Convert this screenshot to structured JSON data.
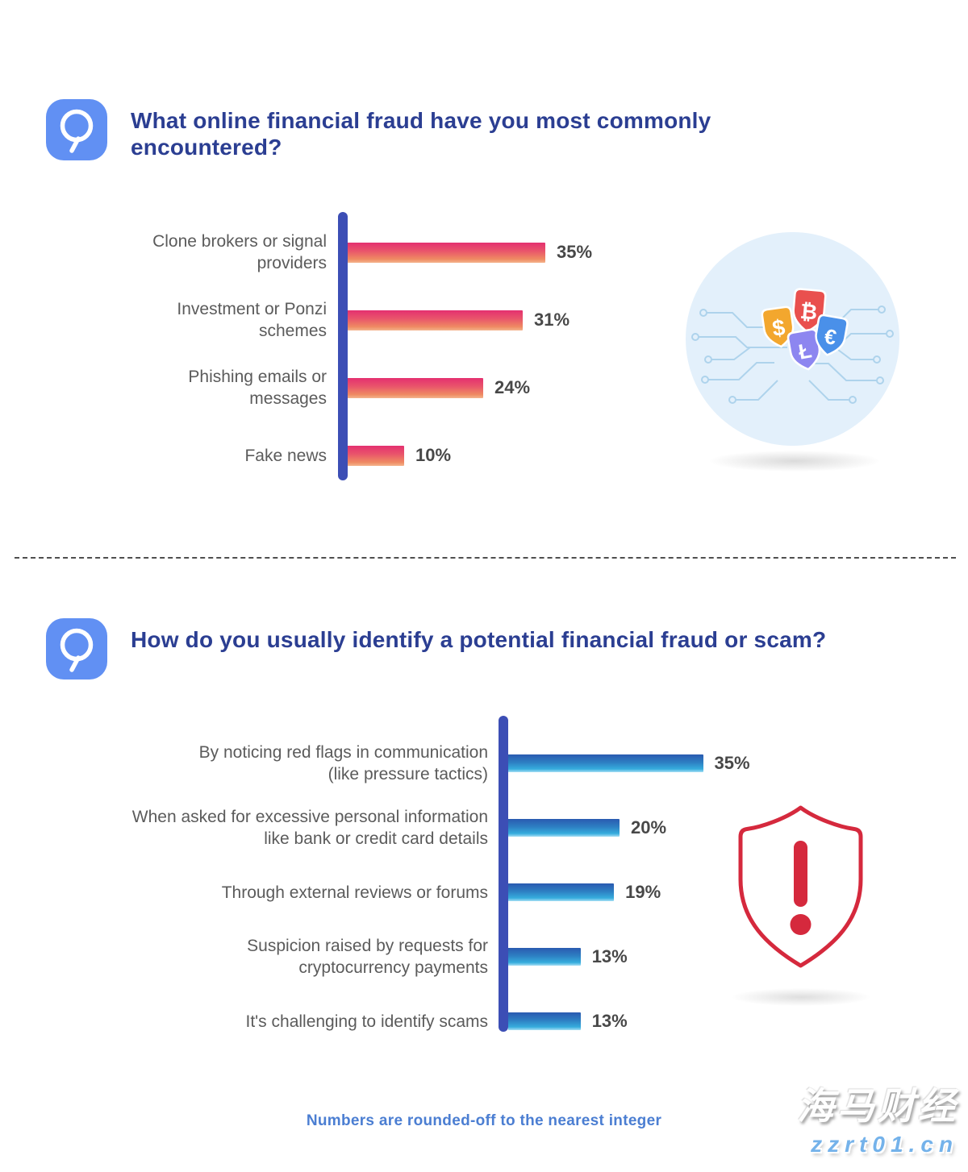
{
  "questions": [
    {
      "title": "What online financial fraud have you most commonly encountered?",
      "icon": "magnifier-q-icon"
    },
    {
      "title": "How do you usually identify a potential financial fraud or scam?",
      "icon": "magnifier-q-icon"
    }
  ],
  "chart_data": [
    {
      "type": "bar",
      "orientation": "horizontal",
      "title": "What online financial fraud have you most commonly encountered?",
      "categories": [
        "Clone brokers or signal\nproviders",
        "Investment or Ponzi\nschemes",
        "Phishing emails or\nmessages",
        "Fake news"
      ],
      "values": [
        35,
        31,
        24,
        10
      ],
      "value_labels": [
        "35%",
        "31%",
        "24%",
        "10%"
      ],
      "value_format": "percent",
      "xlim": [
        0,
        40
      ],
      "grid": false,
      "legend": "none",
      "bar_gradient": [
        "#e43070",
        "#f0915f"
      ],
      "axis_color": "#3c4eb5"
    },
    {
      "type": "bar",
      "orientation": "horizontal",
      "title": "How do you usually identify a potential financial fraud or scam?",
      "categories": [
        "By noticing red flags in communication\n(like pressure tactics)",
        "When asked for excessive personal information\nlike bank or credit card details",
        "Through external reviews or forums",
        "Suspicion raised by requests for\ncryptocurrency payments",
        "It's challenging to identify scams"
      ],
      "values": [
        35,
        20,
        19,
        13,
        13
      ],
      "value_labels": [
        "35%",
        "20%",
        "19%",
        "13%",
        "13%"
      ],
      "value_format": "percent",
      "xlim": [
        0,
        40
      ],
      "grid": false,
      "legend": "none",
      "bar_gradient": [
        "#2a5ab0",
        "#38b6e4"
      ],
      "axis_color": "#3c4eb5"
    }
  ],
  "illustrations": {
    "currency_shields": {
      "icon": "currency-shields-circuit-icon",
      "symbols": [
        "$",
        "₿",
        "€",
        "Ł"
      ]
    },
    "warning_shield": {
      "icon": "warning-shield-icon",
      "symbol": "!"
    }
  },
  "footer": {
    "note": "Numbers are rounded-off to the nearest integer"
  },
  "watermark": {
    "title": "海马财经",
    "url": "zzrt01.cn"
  },
  "colors": {
    "title_text": "#2b3e92",
    "question_badge": "#6190f3",
    "axis": "#3c4eb5",
    "pink_bar_top": "#e43070",
    "pink_bar_bottom": "#f0915f",
    "blue_bar_top": "#2a5ab0",
    "blue_bar_bottom": "#38b6e4",
    "label_text": "#5b5b5b",
    "value_text": "#484848",
    "footer_text": "#4b7ed2",
    "warning_red": "#d5293d"
  }
}
